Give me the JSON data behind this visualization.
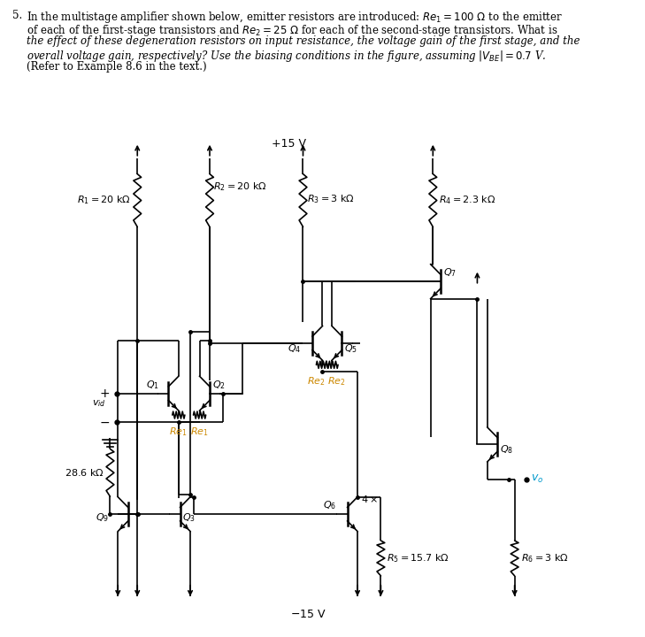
{
  "background_color": "#ffffff",
  "figsize": [
    7.29,
    7.2
  ],
  "dpi": 100,
  "header": {
    "number": "5.",
    "lines": [
      "In the multistage amplifier shown below, emitter resistors are introduced: Re₁ = 100 Ω to the emitter",
      "of each of the first-stage transistors and Re₂ = 25 Ω for each of the second-stage transistors. What is",
      "the effect of these degeneration resistors on input resistance, the voltage gain of the first stage, and the",
      "overall voltage gain, respectively? Use the biasing conditions in the figure, assuming |Vʙᴇ| = 0.7 V.",
      "(Refer to Example 8.6 in the text.)"
    ]
  }
}
